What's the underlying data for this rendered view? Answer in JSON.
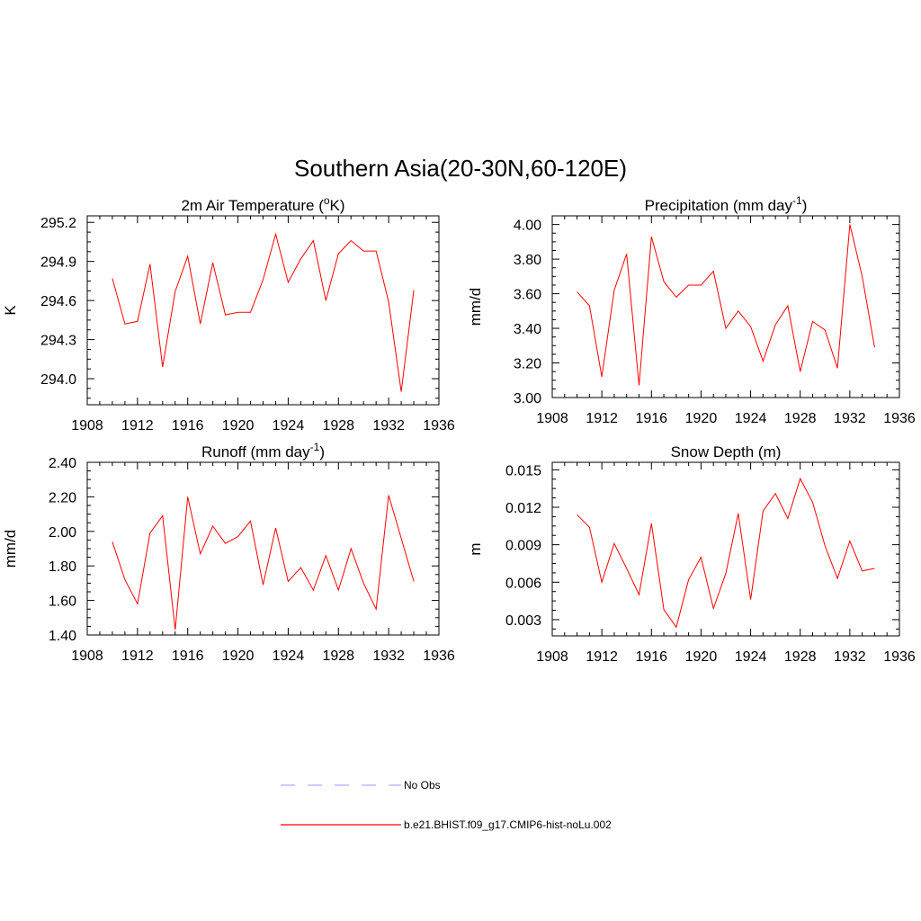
{
  "title": "Southern Asia(20-30N,60-120E)",
  "chart_data": [
    {
      "type": "line",
      "title": "2m Air Temperature (°K)",
      "title_main": "2m Air Temperature (",
      "title_sup": "o",
      "title_tail": "K)",
      "ylabel": "K",
      "xlim": [
        1908,
        1936
      ],
      "ylim": [
        293.8,
        295.25
      ],
      "xticks": [
        1908,
        1912,
        1916,
        1920,
        1924,
        1928,
        1932,
        1936
      ],
      "yticks": [
        294.0,
        294.3,
        294.6,
        294.9,
        295.2
      ],
      "ytick_labels": [
        "294.0",
        "294.3",
        "294.6",
        "294.9",
        "295.2"
      ],
      "series": [
        {
          "color": "#ff0000",
          "x": [
            1910,
            1911,
            1912,
            1913,
            1914,
            1915,
            1916,
            1917,
            1918,
            1919,
            1920,
            1921,
            1922,
            1923,
            1924,
            1925,
            1926,
            1927,
            1928,
            1929,
            1930,
            1931,
            1932,
            1933,
            1934
          ],
          "y": [
            294.77,
            294.42,
            294.44,
            294.88,
            294.09,
            294.67,
            294.94,
            294.42,
            294.89,
            294.49,
            294.51,
            294.51,
            294.76,
            295.11,
            294.74,
            294.92,
            295.06,
            294.6,
            294.96,
            295.06,
            294.98,
            294.98,
            294.59,
            293.9,
            294.68
          ]
        }
      ]
    },
    {
      "type": "line",
      "title": "Precipitation (mm day-1)",
      "title_main": "Precipitation (mm day",
      "title_sup": "-1",
      "title_tail": ")",
      "ylabel": "mm/d",
      "xlim": [
        1908,
        1936
      ],
      "ylim": [
        3.0,
        4.05
      ],
      "xticks": [
        1908,
        1912,
        1916,
        1920,
        1924,
        1928,
        1932,
        1936
      ],
      "yticks": [
        3.0,
        3.2,
        3.4,
        3.6,
        3.8,
        4.0
      ],
      "ytick_labels": [
        "3.00",
        "3.20",
        "3.40",
        "3.60",
        "3.80",
        "4.00"
      ],
      "series": [
        {
          "color": "#ff0000",
          "x": [
            1910,
            1911,
            1912,
            1913,
            1914,
            1915,
            1916,
            1917,
            1918,
            1919,
            1920,
            1921,
            1922,
            1923,
            1924,
            1925,
            1926,
            1927,
            1928,
            1929,
            1930,
            1931,
            1932,
            1933,
            1934
          ],
          "y": [
            3.61,
            3.53,
            3.12,
            3.62,
            3.83,
            3.07,
            3.93,
            3.67,
            3.58,
            3.65,
            3.65,
            3.73,
            3.4,
            3.5,
            3.41,
            3.21,
            3.42,
            3.53,
            3.15,
            3.44,
            3.39,
            3.17,
            4.0,
            3.7,
            3.29
          ]
        }
      ]
    },
    {
      "type": "line",
      "title": "Runoff (mm day-1)",
      "title_main": "Runoff (mm day",
      "title_sup": "-1",
      "title_tail": ")",
      "ylabel": "mm/d",
      "xlim": [
        1908,
        1936
      ],
      "ylim": [
        1.4,
        2.4
      ],
      "xticks": [
        1908,
        1912,
        1916,
        1920,
        1924,
        1928,
        1932,
        1936
      ],
      "yticks": [
        1.4,
        1.6,
        1.8,
        2.0,
        2.2,
        2.4
      ],
      "ytick_labels": [
        "1.40",
        "1.60",
        "1.80",
        "2.00",
        "2.20",
        "2.40"
      ],
      "series": [
        {
          "color": "#ff0000",
          "x": [
            1910,
            1911,
            1912,
            1913,
            1914,
            1915,
            1916,
            1917,
            1918,
            1919,
            1920,
            1921,
            1922,
            1923,
            1924,
            1925,
            1926,
            1927,
            1928,
            1929,
            1930,
            1931,
            1932,
            1933,
            1934
          ],
          "y": [
            1.94,
            1.72,
            1.58,
            1.99,
            2.09,
            1.43,
            2.2,
            1.87,
            2.03,
            1.93,
            1.97,
            2.06,
            1.69,
            2.02,
            1.71,
            1.79,
            1.66,
            1.86,
            1.66,
            1.9,
            1.7,
            1.55,
            2.21,
            1.96,
            1.71
          ]
        }
      ]
    },
    {
      "type": "line",
      "title": "Snow Depth (m)",
      "title_main": "Snow Depth (m)",
      "title_sup": "",
      "title_tail": "",
      "ylabel": "m",
      "xlim": [
        1908,
        1936
      ],
      "ylim": [
        0.0017,
        0.0156
      ],
      "xticks": [
        1908,
        1912,
        1916,
        1920,
        1924,
        1928,
        1932,
        1936
      ],
      "yticks": [
        0.003,
        0.006,
        0.009,
        0.012,
        0.015
      ],
      "ytick_labels": [
        "0.003",
        "0.006",
        "0.009",
        "0.012",
        "0.015"
      ],
      "series": [
        {
          "color": "#ff0000",
          "x": [
            1910,
            1911,
            1912,
            1913,
            1914,
            1915,
            1916,
            1917,
            1918,
            1919,
            1920,
            1921,
            1922,
            1923,
            1924,
            1925,
            1926,
            1927,
            1928,
            1929,
            1930,
            1931,
            1932,
            1933,
            1934
          ],
          "y": [
            0.0114,
            0.0104,
            0.006,
            0.0091,
            0.0071,
            0.005,
            0.0107,
            0.0038,
            0.0024,
            0.0062,
            0.008,
            0.0039,
            0.0067,
            0.0115,
            0.0046,
            0.0117,
            0.0131,
            0.0111,
            0.0143,
            0.0124,
            0.0089,
            0.0063,
            0.0093,
            0.0069,
            0.0071
          ]
        }
      ]
    }
  ],
  "legend": [
    {
      "label": "No Obs",
      "color": "#aab0ff",
      "style": "dashed"
    },
    {
      "label": "b.e21.BHIST.f09_g17.CMIP6-hist-noLu.002",
      "color": "#ff0000",
      "style": "solid"
    }
  ]
}
